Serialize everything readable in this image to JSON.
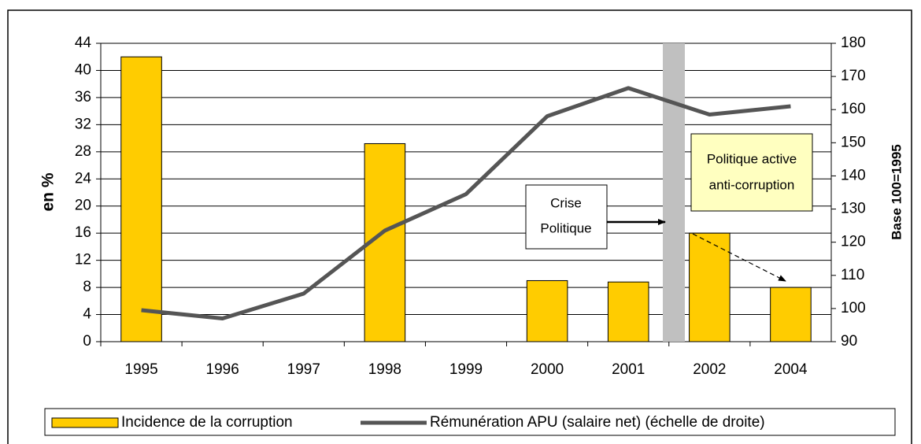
{
  "chart_data": {
    "type": "bar_line",
    "categories": [
      "1995",
      "1996",
      "1997",
      "1998",
      "1999",
      "2000",
      "2001",
      "2002",
      "2004"
    ],
    "series": [
      {
        "name": "Incidence de la corruption",
        "color": "#ffcc00",
        "values": [
          42,
          null,
          null,
          29.2,
          null,
          9,
          8.8,
          16,
          8
        ]
      },
      {
        "name": "Rémunération APU (salaire net) (échelle de droite)",
        "color": "#555555",
        "axis": "y2",
        "values": [
          99.5,
          97,
          104.5,
          123.5,
          134.5,
          158,
          166.5,
          158.5,
          161
        ]
      }
    ],
    "ylabel": "en %",
    "y2label": "Base 100=1995",
    "ylim": [
      0,
      44
    ],
    "yticks": [
      0,
      4,
      8,
      12,
      16,
      20,
      24,
      28,
      32,
      36,
      40,
      44
    ],
    "y2lim": [
      90,
      180
    ],
    "y2ticks": [
      90,
      100,
      110,
      120,
      130,
      140,
      150,
      160,
      170,
      180
    ],
    "grid": true,
    "legend": "bottom",
    "annotations": [
      [
        "Crise",
        "Politique"
      ],
      [
        "Politique active",
        "anti-corruption"
      ]
    ]
  }
}
